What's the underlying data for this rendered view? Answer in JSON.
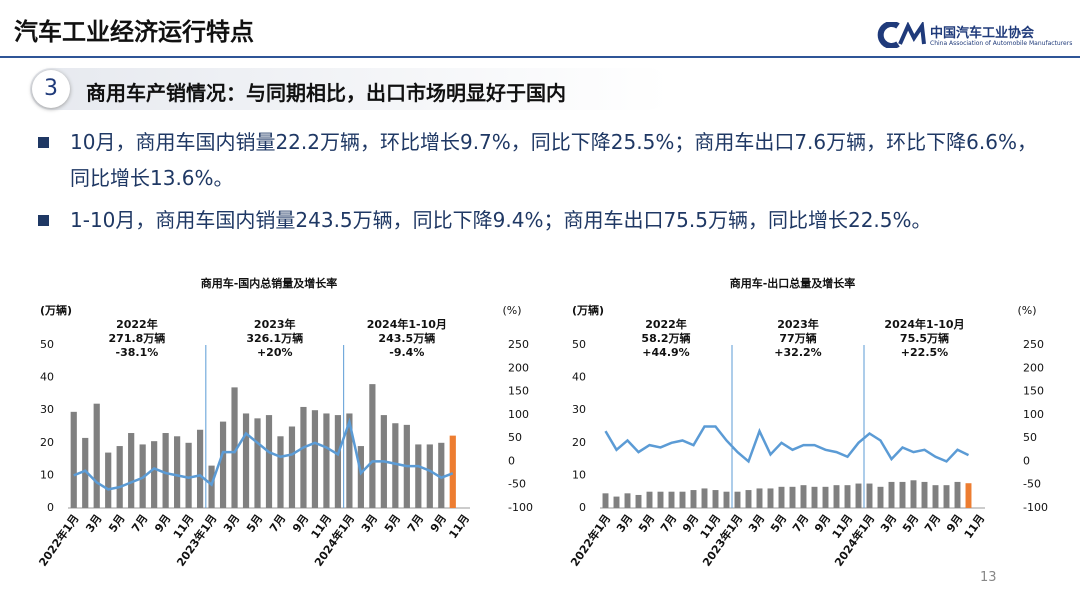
{
  "header": {
    "title": "汽车工业经济运行特点",
    "logo_cn": "中国汽车工业协会",
    "logo_en": "China Association of Automobile Manufacturers"
  },
  "section": {
    "number": "3",
    "heading": "商用车产销情况：与同期相比，出口市场明显好于国内"
  },
  "bullets": [
    "10月，商用车国内销量22.2万辆，环比增长9.7%，同比下降25.5%；商用车出口7.6万辆，环比下降6.6%，同比增长13.6%。",
    "1-10月，商用车国内销量243.5万辆，同比下降9.4%；商用车出口75.5万辆，同比增长22.5%。"
  ],
  "page_number": "13",
  "chart_data": [
    {
      "type": "bar",
      "title": "商用车-国内总销量及增长率",
      "y_label": "(万辆)",
      "y2_label": "(%)",
      "categories": [
        "2022年1月",
        null,
        "3月",
        null,
        "5月",
        null,
        "7月",
        null,
        "9月",
        null,
        "11月",
        null,
        "2023年1月",
        null,
        "3月",
        null,
        "5月",
        null,
        "7月",
        null,
        "9月",
        null,
        "11月",
        null,
        "2024年1月",
        null,
        "3月",
        null,
        "5月",
        null,
        "7月",
        null,
        "9月",
        null,
        "11月"
      ],
      "series": [
        {
          "type": "bar",
          "color": "#808080",
          "highlight_color": "#ed7d31",
          "values": [
            29.5,
            21.5,
            32,
            17,
            19,
            23,
            19.5,
            20.5,
            23,
            22,
            20,
            24,
            13,
            26.5,
            37,
            29,
            27.5,
            28.5,
            22,
            25,
            31,
            30,
            29,
            28.5,
            29,
            19,
            38,
            28.5,
            26,
            25.5,
            19.5,
            19.5,
            20,
            22.2,
            null
          ]
        },
        {
          "type": "line",
          "axis": "y2",
          "color": "#5b9bd5",
          "values": [
            -30,
            -20,
            -45,
            -60,
            -55,
            -45,
            -35,
            -15,
            -25,
            -30,
            -35,
            -30,
            -50,
            20,
            20,
            60,
            40,
            20,
            10,
            15,
            30,
            40,
            30,
            15,
            85,
            -25,
            0,
            0,
            -5,
            -10,
            -10,
            -20,
            -35,
            -25.5,
            null
          ]
        }
      ],
      "ylim": [
        0,
        50
      ],
      "yticks": [
        0,
        10,
        20,
        30,
        40,
        50
      ],
      "y2lim": [
        -100,
        250
      ],
      "y2ticks": [
        -100,
        -50,
        0,
        50,
        100,
        150,
        200,
        250
      ],
      "annotation_color": "#e02020",
      "annotations": [
        {
          "year": "2022年",
          "total": "271.8万辆",
          "growth": "-38.1%"
        },
        {
          "year": "2023年",
          "total": "326.1万辆",
          "growth": "+20%"
        },
        {
          "year": "2024年1-10月",
          "total": "243.5万辆",
          "growth": "-9.4%"
        }
      ]
    },
    {
      "type": "bar",
      "title": "商用车-出口总量及增长率",
      "y_label": "(万辆)",
      "y2_label": "(%)",
      "categories": [
        "2022年1月",
        null,
        "3月",
        null,
        "5月",
        null,
        "7月",
        null,
        "9月",
        null,
        "11月",
        null,
        "2023年1月",
        null,
        "3月",
        null,
        "5月",
        null,
        "7月",
        null,
        "9月",
        null,
        "11月",
        null,
        "2024年1月",
        null,
        "3月",
        null,
        "5月",
        null,
        "7月",
        null,
        "9月",
        null,
        "11月"
      ],
      "series": [
        {
          "type": "bar",
          "color": "#808080",
          "highlight_color": "#ed7d31",
          "values": [
            4.5,
            3.5,
            4.5,
            4,
            5,
            5,
            5,
            5,
            5.5,
            6,
            5.5,
            5,
            5,
            5.5,
            6,
            6,
            6.5,
            6.5,
            7,
            6.5,
            6.5,
            7,
            7,
            7.5,
            7.5,
            6.5,
            8,
            8,
            8.5,
            8,
            7,
            7,
            8,
            7.6,
            null
          ]
        },
        {
          "type": "line",
          "axis": "y2",
          "color": "#5b9bd5",
          "values": [
            65,
            25,
            45,
            20,
            35,
            30,
            40,
            45,
            35,
            75,
            75,
            45,
            20,
            0,
            65,
            15,
            40,
            25,
            35,
            35,
            25,
            20,
            10,
            40,
            60,
            45,
            5,
            30,
            20,
            25,
            10,
            0,
            25,
            13.6,
            null
          ]
        }
      ],
      "ylim": [
        0,
        50
      ],
      "yticks": [
        0,
        10,
        20,
        30,
        40,
        50
      ],
      "y2lim": [
        -100,
        250
      ],
      "y2ticks": [
        -100,
        -50,
        0,
        50,
        100,
        150,
        200,
        250
      ],
      "annotation_color": "#000000",
      "annotations": [
        {
          "year": "2022年",
          "total": "58.2万辆",
          "growth": "+44.9%"
        },
        {
          "year": "2023年",
          "total": "77万辆",
          "growth": "+32.2%"
        },
        {
          "year": "2024年1-10月",
          "total": "75.5万辆",
          "growth": "+22.5%"
        }
      ]
    }
  ]
}
